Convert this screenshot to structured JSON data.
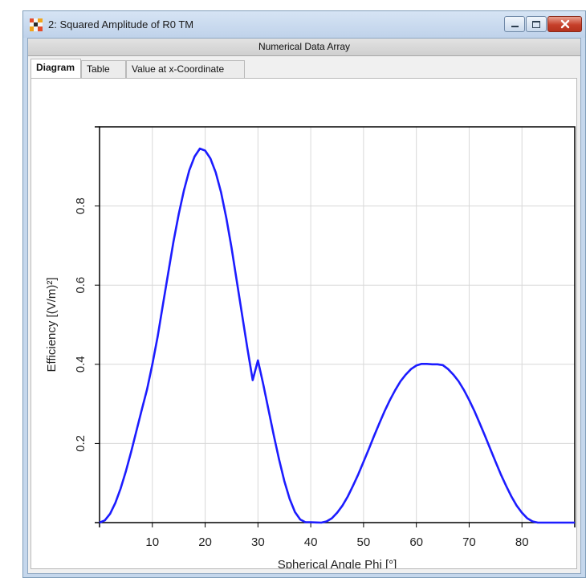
{
  "window": {
    "title": "2: Squared Amplitude of R0 TM",
    "panel_header": "Numerical Data Array",
    "controls": {
      "minimize": "minimize-icon",
      "maximize": "maximize-icon",
      "close": "close-icon"
    }
  },
  "tabs": [
    {
      "label": "Diagram",
      "active": true
    },
    {
      "label": "Table",
      "active": false
    },
    {
      "label": "Value at x-Coordinate",
      "active": false
    }
  ],
  "colors": {
    "curve": "#1c1cff",
    "grid": "#d8d8d8",
    "axis": "#000000"
  },
  "chart_data": {
    "type": "line",
    "xlabel": "Spherical Angle Phi [°]",
    "ylabel": "Efficiency [(V/m)²]",
    "xlim": [
      0,
      90
    ],
    "ylim": [
      0,
      1.0
    ],
    "xticks": [
      10,
      20,
      30,
      40,
      50,
      60,
      70,
      80
    ],
    "yticks": [
      0.2,
      0.4,
      0.6,
      0.8
    ],
    "xtick_labels": [
      "10",
      "20",
      "30",
      "40",
      "50",
      "60",
      "70",
      "80"
    ],
    "ytick_labels": [
      "0.2",
      "0.4",
      "0.6",
      "0.8"
    ],
    "grid": true,
    "series": [
      {
        "x": [
          0,
          1,
          2,
          3,
          4,
          5,
          6,
          7,
          8,
          9,
          10,
          11,
          12,
          13,
          14,
          15,
          16,
          17,
          18,
          19,
          20,
          21,
          22,
          23,
          24,
          25,
          26,
          27,
          28,
          29,
          30,
          31,
          32,
          33,
          34,
          35,
          36,
          37,
          38,
          39,
          40,
          41,
          42,
          43,
          44,
          45,
          46,
          47,
          48,
          49,
          50,
          51,
          52,
          53,
          54,
          55,
          56,
          57,
          58,
          59,
          60,
          61,
          62,
          63,
          64,
          65,
          66,
          67,
          68,
          69,
          70,
          71,
          72,
          73,
          74,
          75,
          76,
          77,
          78,
          79,
          80,
          81,
          82,
          83,
          84,
          85,
          86,
          87,
          88,
          89,
          90
        ],
        "y": [
          0,
          0.0057,
          0.0225,
          0.05,
          0.0865,
          0.1304,
          0.1797,
          0.2321,
          0.2852,
          0.3367,
          0.4,
          0.47,
          0.55,
          0.63,
          0.71,
          0.78,
          0.84,
          0.89,
          0.925,
          0.945,
          0.94,
          0.92,
          0.885,
          0.835,
          0.77,
          0.695,
          0.61,
          0.525,
          0.44,
          0.36,
          0.41,
          0.35,
          0.285,
          0.22,
          0.16,
          0.105,
          0.06,
          0.027,
          0.008,
          0.001,
          0.001,
          0.0005,
          0.0,
          0.003,
          0.011,
          0.025,
          0.043,
          0.066,
          0.093,
          0.122,
          0.154,
          0.186,
          0.219,
          0.251,
          0.282,
          0.31,
          0.335,
          0.357,
          0.374,
          0.388,
          0.397,
          0.401,
          0.401,
          0.4,
          0.4,
          0.398,
          0.388,
          0.374,
          0.357,
          0.335,
          0.31,
          0.282,
          0.251,
          0.219,
          0.186,
          0.154,
          0.122,
          0.093,
          0.066,
          0.043,
          0.025,
          0.011,
          0.003,
          0.0,
          0.0,
          0.0,
          0.0,
          0.0,
          0.0,
          0.0,
          0.0
        ]
      }
    ]
  }
}
